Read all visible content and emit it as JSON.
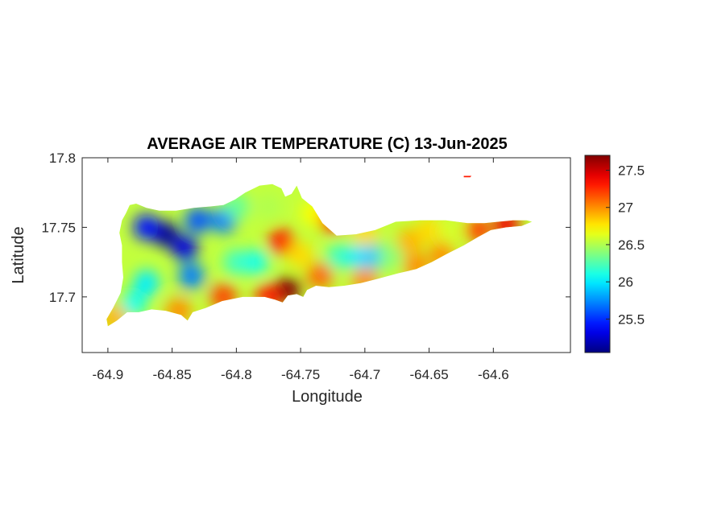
{
  "chart_data": {
    "type": "heatmap",
    "title": "AVERAGE AIR TEMPERATURE (C) 13-Jun-2025",
    "xlabel": "Longitude",
    "ylabel": "Latitude",
    "xlim": [
      -64.92,
      -64.54
    ],
    "ylim": [
      17.66,
      17.8
    ],
    "xticks": [
      -64.9,
      -64.85,
      -64.8,
      -64.75,
      -64.7,
      -64.65,
      -64.6
    ],
    "xtick_labels": [
      "-64.9",
      "-64.85",
      "-64.8",
      "-64.75",
      "-64.7",
      "-64.65",
      "-64.6"
    ],
    "yticks": [
      17.7,
      17.75,
      17.8
    ],
    "ytick_labels": [
      "17.7",
      "17.75",
      "17.8"
    ],
    "colorbar": {
      "colormap": "jet",
      "range": [
        25.05,
        27.7
      ],
      "ticks": [
        25.5,
        26,
        26.5,
        27,
        27.5
      ],
      "tick_labels": [
        "25.5",
        "26",
        "26.5",
        "27",
        "27.5"
      ]
    },
    "grid": false,
    "island_outline": [
      [
        -64.9,
        17.679
      ],
      [
        -64.893,
        17.683
      ],
      [
        -64.885,
        17.689
      ],
      [
        -64.876,
        17.689
      ],
      [
        -64.866,
        17.691
      ],
      [
        -64.855,
        17.69
      ],
      [
        -64.843,
        17.687
      ],
      [
        -64.838,
        17.683
      ],
      [
        -64.834,
        17.689
      ],
      [
        -64.824,
        17.692
      ],
      [
        -64.811,
        17.697
      ],
      [
        -64.795,
        17.7
      ],
      [
        -64.778,
        17.7
      ],
      [
        -64.77,
        17.698
      ],
      [
        -64.764,
        17.696
      ],
      [
        -64.76,
        17.701
      ],
      [
        -64.753,
        17.702
      ],
      [
        -64.748,
        17.7
      ],
      [
        -64.745,
        17.705
      ],
      [
        -64.738,
        17.708
      ],
      [
        -64.728,
        17.707
      ],
      [
        -64.716,
        17.708
      ],
      [
        -64.703,
        17.71
      ],
      [
        -64.69,
        17.713
      ],
      [
        -64.674,
        17.717
      ],
      [
        -64.66,
        17.72
      ],
      [
        -64.648,
        17.725
      ],
      [
        -64.636,
        17.731
      ],
      [
        -64.623,
        17.737
      ],
      [
        -64.612,
        17.743
      ],
      [
        -64.602,
        17.748
      ],
      [
        -64.59,
        17.75
      ],
      [
        -64.578,
        17.751
      ],
      [
        -64.57,
        17.754
      ],
      [
        -64.574,
        17.755
      ],
      [
        -64.585,
        17.755
      ],
      [
        -64.596,
        17.754
      ],
      [
        -64.607,
        17.753
      ],
      [
        -64.62,
        17.753
      ],
      [
        -64.637,
        17.755
      ],
      [
        -64.657,
        17.755
      ],
      [
        -64.676,
        17.754
      ],
      [
        -64.692,
        17.748
      ],
      [
        -64.707,
        17.745
      ],
      [
        -64.722,
        17.744
      ],
      [
        -64.733,
        17.753
      ],
      [
        -64.741,
        17.765
      ],
      [
        -64.749,
        17.771
      ],
      [
        -64.753,
        17.78
      ],
      [
        -64.757,
        17.774
      ],
      [
        -64.762,
        17.772
      ],
      [
        -64.765,
        17.778
      ],
      [
        -64.772,
        17.781
      ],
      [
        -64.782,
        17.78
      ],
      [
        -64.793,
        17.775
      ],
      [
        -64.801,
        17.77
      ],
      [
        -64.81,
        17.766
      ],
      [
        -64.82,
        17.765
      ],
      [
        -64.833,
        17.764
      ],
      [
        -64.847,
        17.762
      ],
      [
        -64.86,
        17.762
      ],
      [
        -64.87,
        17.764
      ],
      [
        -64.878,
        17.767
      ],
      [
        -64.883,
        17.766
      ],
      [
        -64.886,
        17.76
      ],
      [
        -64.889,
        17.755
      ],
      [
        -64.891,
        17.746
      ],
      [
        -64.889,
        17.737
      ],
      [
        -64.889,
        17.725
      ],
      [
        -64.888,
        17.714
      ],
      [
        -64.89,
        17.703
      ],
      [
        -64.896,
        17.692
      ],
      [
        -64.901,
        17.684
      ]
    ],
    "cay_outline": [
      [
        -64.623,
        17.787
      ],
      [
        -64.617,
        17.787
      ],
      [
        -64.618,
        17.786
      ],
      [
        -64.623,
        17.786
      ]
    ],
    "hotspots": [
      {
        "lon": -64.855,
        "lat": 17.745,
        "value": 25.1
      },
      {
        "lon": -64.87,
        "lat": 17.75,
        "value": 25.4
      },
      {
        "lon": -64.84,
        "lat": 17.735,
        "value": 25.3
      },
      {
        "lon": -64.83,
        "lat": 17.755,
        "value": 25.6
      },
      {
        "lon": -64.81,
        "lat": 17.755,
        "value": 25.7
      },
      {
        "lon": -64.835,
        "lat": 17.715,
        "value": 25.7
      },
      {
        "lon": -64.87,
        "lat": 17.71,
        "value": 26.0
      },
      {
        "lon": -64.88,
        "lat": 17.695,
        "value": 26.1
      },
      {
        "lon": -64.8,
        "lat": 17.725,
        "value": 26.2
      },
      {
        "lon": -64.785,
        "lat": 17.725,
        "value": 26.1
      },
      {
        "lon": -64.775,
        "lat": 17.765,
        "value": 26.5
      },
      {
        "lon": -64.8,
        "lat": 17.765,
        "value": 26.3
      },
      {
        "lon": -64.765,
        "lat": 17.74,
        "value": 27.3
      },
      {
        "lon": -64.76,
        "lat": 17.705,
        "value": 27.7
      },
      {
        "lon": -64.775,
        "lat": 17.7,
        "value": 27.3
      },
      {
        "lon": -64.81,
        "lat": 17.7,
        "value": 27.2
      },
      {
        "lon": -64.845,
        "lat": 17.69,
        "value": 27.0
      },
      {
        "lon": -64.895,
        "lat": 17.685,
        "value": 26.9
      },
      {
        "lon": -64.74,
        "lat": 17.76,
        "value": 26.7
      },
      {
        "lon": -64.725,
        "lat": 17.755,
        "value": 27.3
      },
      {
        "lon": -64.735,
        "lat": 17.715,
        "value": 27.1
      },
      {
        "lon": -64.72,
        "lat": 17.729,
        "value": 26.2
      },
      {
        "lon": -64.705,
        "lat": 17.729,
        "value": 26.0
      },
      {
        "lon": -64.693,
        "lat": 17.729,
        "value": 25.9
      },
      {
        "lon": -64.68,
        "lat": 17.729,
        "value": 26.4
      },
      {
        "lon": -64.7,
        "lat": 17.745,
        "value": 26.8
      },
      {
        "lon": -64.7,
        "lat": 17.712,
        "value": 27.0
      },
      {
        "lon": -64.665,
        "lat": 17.74,
        "value": 26.9
      },
      {
        "lon": -64.65,
        "lat": 17.748,
        "value": 26.8
      },
      {
        "lon": -64.633,
        "lat": 17.747,
        "value": 26.6
      },
      {
        "lon": -64.64,
        "lat": 17.73,
        "value": 27.0
      },
      {
        "lon": -64.612,
        "lat": 17.748,
        "value": 27.2
      },
      {
        "lon": -64.59,
        "lat": 17.752,
        "value": 27.4
      },
      {
        "lon": -64.66,
        "lat": 17.722,
        "value": 27.0
      },
      {
        "lon": -64.75,
        "lat": 17.73,
        "value": 26.8
      },
      {
        "lon": -64.62,
        "lat": 17.787,
        "value": 27.3
      }
    ]
  }
}
